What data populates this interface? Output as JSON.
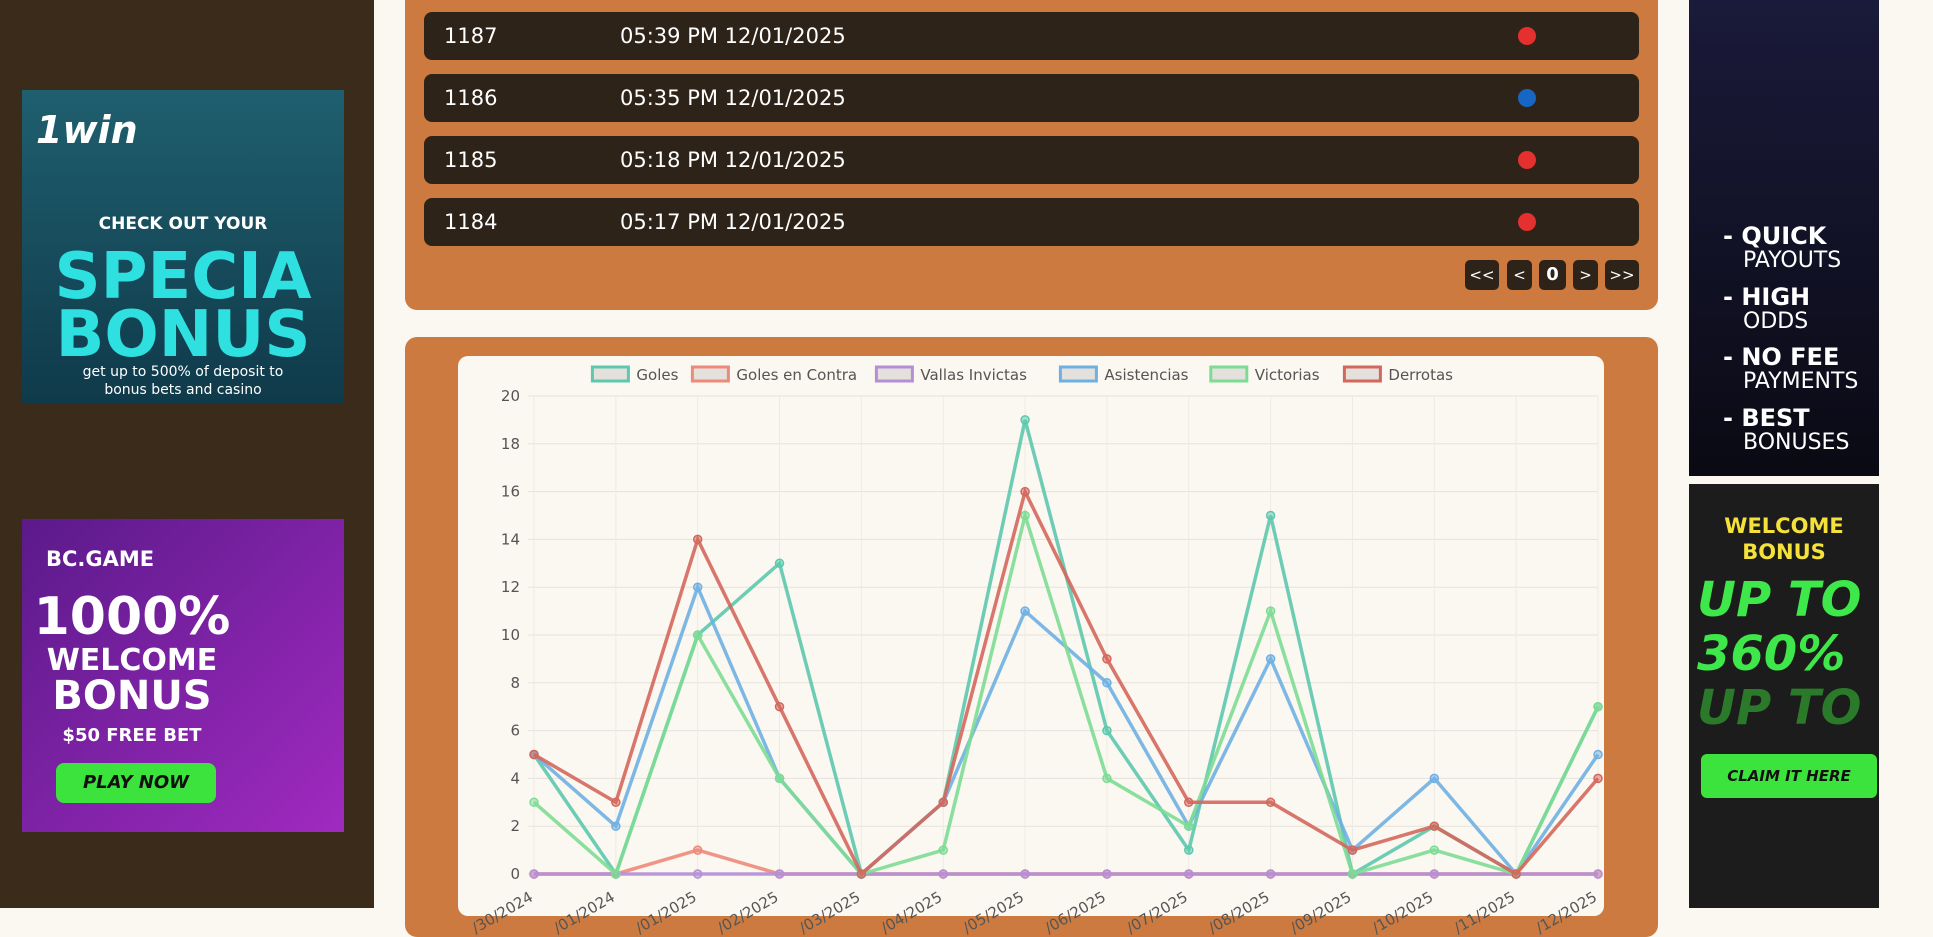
{
  "table": {
    "rows": [
      [
        "1187",
        "05:39 PM 12/01/2025"
      ],
      [
        "1186",
        "05:35 PM 12/01/2025"
      ],
      [
        "1185",
        "05:18 PM 12/01/2025"
      ],
      [
        "1184",
        "05:17 PM 12/01/2025"
      ]
    ]
  },
  "pagination": {
    "first": "<<",
    "prev": "<",
    "page": "0",
    "next": ">",
    "last": ">>"
  },
  "ads": {
    "left_top": [
      "1win",
      "CHECK OUT YOUR",
      "SPECIA",
      "BONUS",
      "get up to 500% of deposit to",
      "bonus bets and casino"
    ],
    "left_bottom": [
      "BC.GAME",
      "1000%",
      "WELCOME",
      "BONUS",
      "$50 FREE BET",
      "PLAY NOW"
    ],
    "right_top": [
      "- QUICK",
      "PAYOUTS",
      "- HIGH",
      "ODDS",
      "- NO FEE",
      "PAYMENTS",
      "- BEST",
      "BONUSES"
    ],
    "right_bottom": [
      "WELCOME",
      "BONUS",
      "UP TO",
      "360%",
      "UP TO",
      "CLAIM IT HERE"
    ]
  },
  "chart_data": {
    "type": "line",
    "categories": [
      "/30/2024",
      "/01/2024",
      "/01/2025",
      "/02/2025",
      "/03/2025",
      "/04/2025",
      "/05/2025",
      "/06/2025",
      "/07/2025",
      "/08/2025",
      "/09/2025",
      "/10/2025",
      "/11/2025",
      "/12/2025"
    ],
    "series": [
      {
        "name": "Goles",
        "color": "#5cc8ad",
        "values": [
          5,
          0,
          10,
          13,
          0,
          3,
          19,
          6,
          1,
          15,
          0,
          2,
          0,
          7
        ]
      },
      {
        "name": "Goles en Contra",
        "color": "#ee8a7a",
        "values": [
          0,
          0,
          1,
          0,
          0,
          0,
          0,
          0,
          0,
          0,
          0,
          0,
          0,
          0
        ]
      },
      {
        "name": "Vallas Invictas",
        "color": "#b48fd6",
        "values": [
          0,
          0,
          0,
          0,
          0,
          0,
          0,
          0,
          0,
          0,
          0,
          0,
          0,
          0
        ]
      },
      {
        "name": "Asistencias",
        "color": "#6fb0e3",
        "values": [
          5,
          2,
          12,
          4,
          0,
          3,
          11,
          8,
          2,
          9,
          1,
          4,
          0,
          5
        ]
      },
      {
        "name": "Victorias",
        "color": "#7ddc93",
        "values": [
          3,
          0,
          10,
          4,
          0,
          1,
          15,
          4,
          2,
          11,
          0,
          1,
          0,
          7
        ]
      },
      {
        "name": "Derrotas",
        "color": "#d4675c",
        "values": [
          5,
          3,
          14,
          7,
          0,
          3,
          16,
          9,
          3,
          3,
          1,
          2,
          0,
          4
        ]
      }
    ],
    "ylim": [
      0,
      20
    ],
    "yticks": [
      0,
      2,
      4,
      6,
      8,
      10,
      12,
      14,
      16,
      18,
      20
    ],
    "grid": true
  }
}
